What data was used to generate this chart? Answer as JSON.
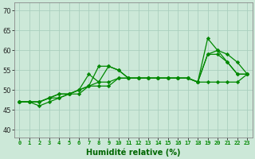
{
  "background_color": "#cce8d8",
  "grid_color": "#aacfbe",
  "line_color": "#008800",
  "marker": "D",
  "markersize": 2.2,
  "linewidth": 0.9,
  "xlabel": "Humidité relative (%)",
  "xlabel_fontsize": 7,
  "xlabel_color": "#006600",
  "ylabel_ticks": [
    40,
    45,
    50,
    55,
    60,
    65,
    70
  ],
  "xlim": [
    -0.5,
    23.5
  ],
  "ylim": [
    38,
    72
  ],
  "xtick_labels": [
    "0",
    "1",
    "2",
    "3",
    "4",
    "5",
    "6",
    "7",
    "8",
    "9",
    "10",
    "11",
    "12",
    "13",
    "14",
    "15",
    "16",
    "17",
    "18",
    "19",
    "20",
    "21",
    "22",
    "23"
  ],
  "lines": [
    [
      47,
      47,
      46,
      47,
      48,
      49,
      49,
      51,
      56,
      56,
      55,
      53,
      53,
      53,
      53,
      53,
      53,
      53,
      52,
      59,
      60,
      57,
      54,
      54
    ],
    [
      47,
      47,
      47,
      48,
      48,
      49,
      50,
      51,
      52,
      52,
      53,
      53,
      53,
      53,
      53,
      53,
      53,
      53,
      52,
      63,
      60,
      59,
      57,
      54
    ],
    [
      47,
      47,
      47,
      48,
      49,
      49,
      50,
      54,
      52,
      56,
      55,
      53,
      53,
      53,
      53,
      53,
      53,
      53,
      52,
      59,
      59,
      57,
      54,
      54
    ],
    [
      47,
      47,
      47,
      48,
      49,
      49,
      50,
      51,
      51,
      51,
      53,
      53,
      53,
      53,
      53,
      53,
      53,
      53,
      52,
      52,
      52,
      52,
      52,
      54
    ]
  ]
}
